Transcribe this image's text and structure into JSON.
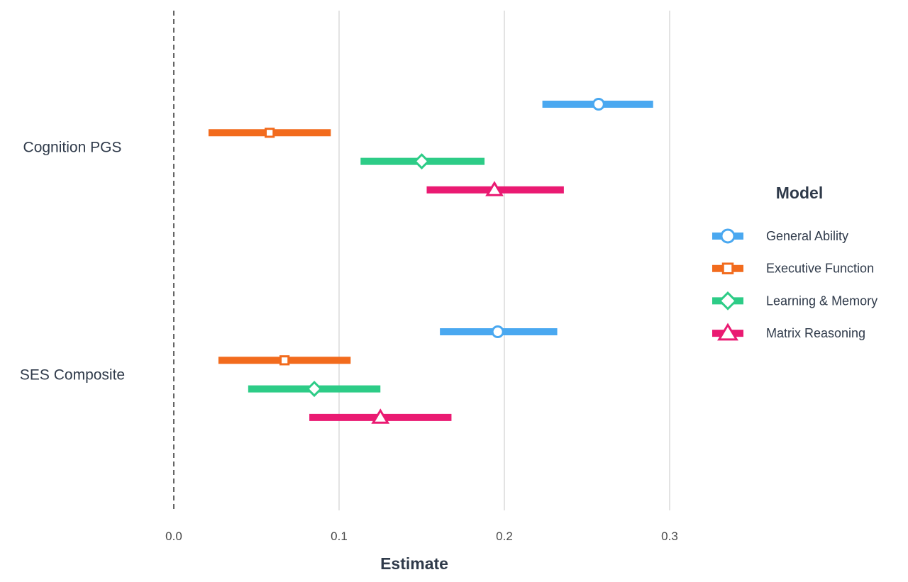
{
  "chart_data": {
    "type": "forest",
    "xlabel": "Estimate",
    "xlim": [
      0.0,
      0.33
    ],
    "xticks": [
      0.0,
      0.1,
      0.2,
      0.3
    ],
    "xtick_labels": [
      "0.0",
      "0.1",
      "0.2",
      "0.3"
    ],
    "reference_line": 0.0,
    "grid": "vertical",
    "categories": [
      "Cognition PGS",
      "SES Composite"
    ],
    "legend": {
      "title": "Model",
      "position": "right"
    },
    "series": [
      {
        "name": "General Ability",
        "color": "#4AA8F0",
        "marker": "circle",
        "estimates": [
          0.257,
          0.196
        ],
        "lower": [
          0.223,
          0.161
        ],
        "upper": [
          0.29,
          0.232
        ]
      },
      {
        "name": "Executive Function",
        "color": "#F26B1D",
        "marker": "square",
        "estimates": [
          0.058,
          0.067
        ],
        "lower": [
          0.021,
          0.027
        ],
        "upper": [
          0.095,
          0.107
        ]
      },
      {
        "name": "Learning & Memory",
        "color": "#2DCC87",
        "marker": "diamond",
        "estimates": [
          0.15,
          0.085
        ],
        "lower": [
          0.113,
          0.045
        ],
        "upper": [
          0.188,
          0.125
        ]
      },
      {
        "name": "Matrix Reasoning",
        "color": "#EA1A72",
        "marker": "triangle",
        "estimates": [
          0.194,
          0.125
        ],
        "lower": [
          0.153,
          0.082
        ],
        "upper": [
          0.236,
          0.168
        ]
      }
    ]
  }
}
